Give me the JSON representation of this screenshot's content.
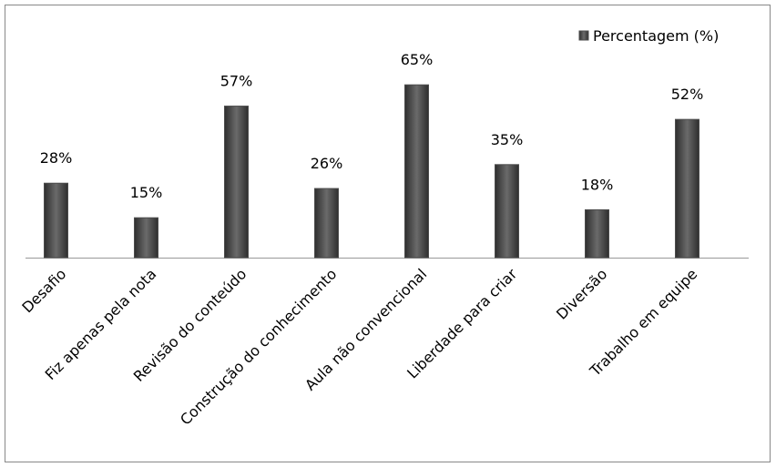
{
  "chart_data": {
    "type": "bar",
    "categories": [
      "Desafio",
      "Fiz apenas pela nota",
      "Revisão do conteúdo",
      "Construção do conhecimento",
      "Aula não convencional",
      "Liberdade para criar",
      "Diversão",
      "Trabalho em equipe"
    ],
    "series": [
      {
        "name": "Percentagem (%)",
        "color": "#4d4d4d",
        "values": [
          28,
          15,
          57,
          26,
          65,
          35,
          18,
          52
        ],
        "value_labels": [
          "28%",
          "15%",
          "57%",
          "26%",
          "65%",
          "35%",
          "18%",
          "52%"
        ]
      }
    ],
    "legend": "top-right"
  }
}
